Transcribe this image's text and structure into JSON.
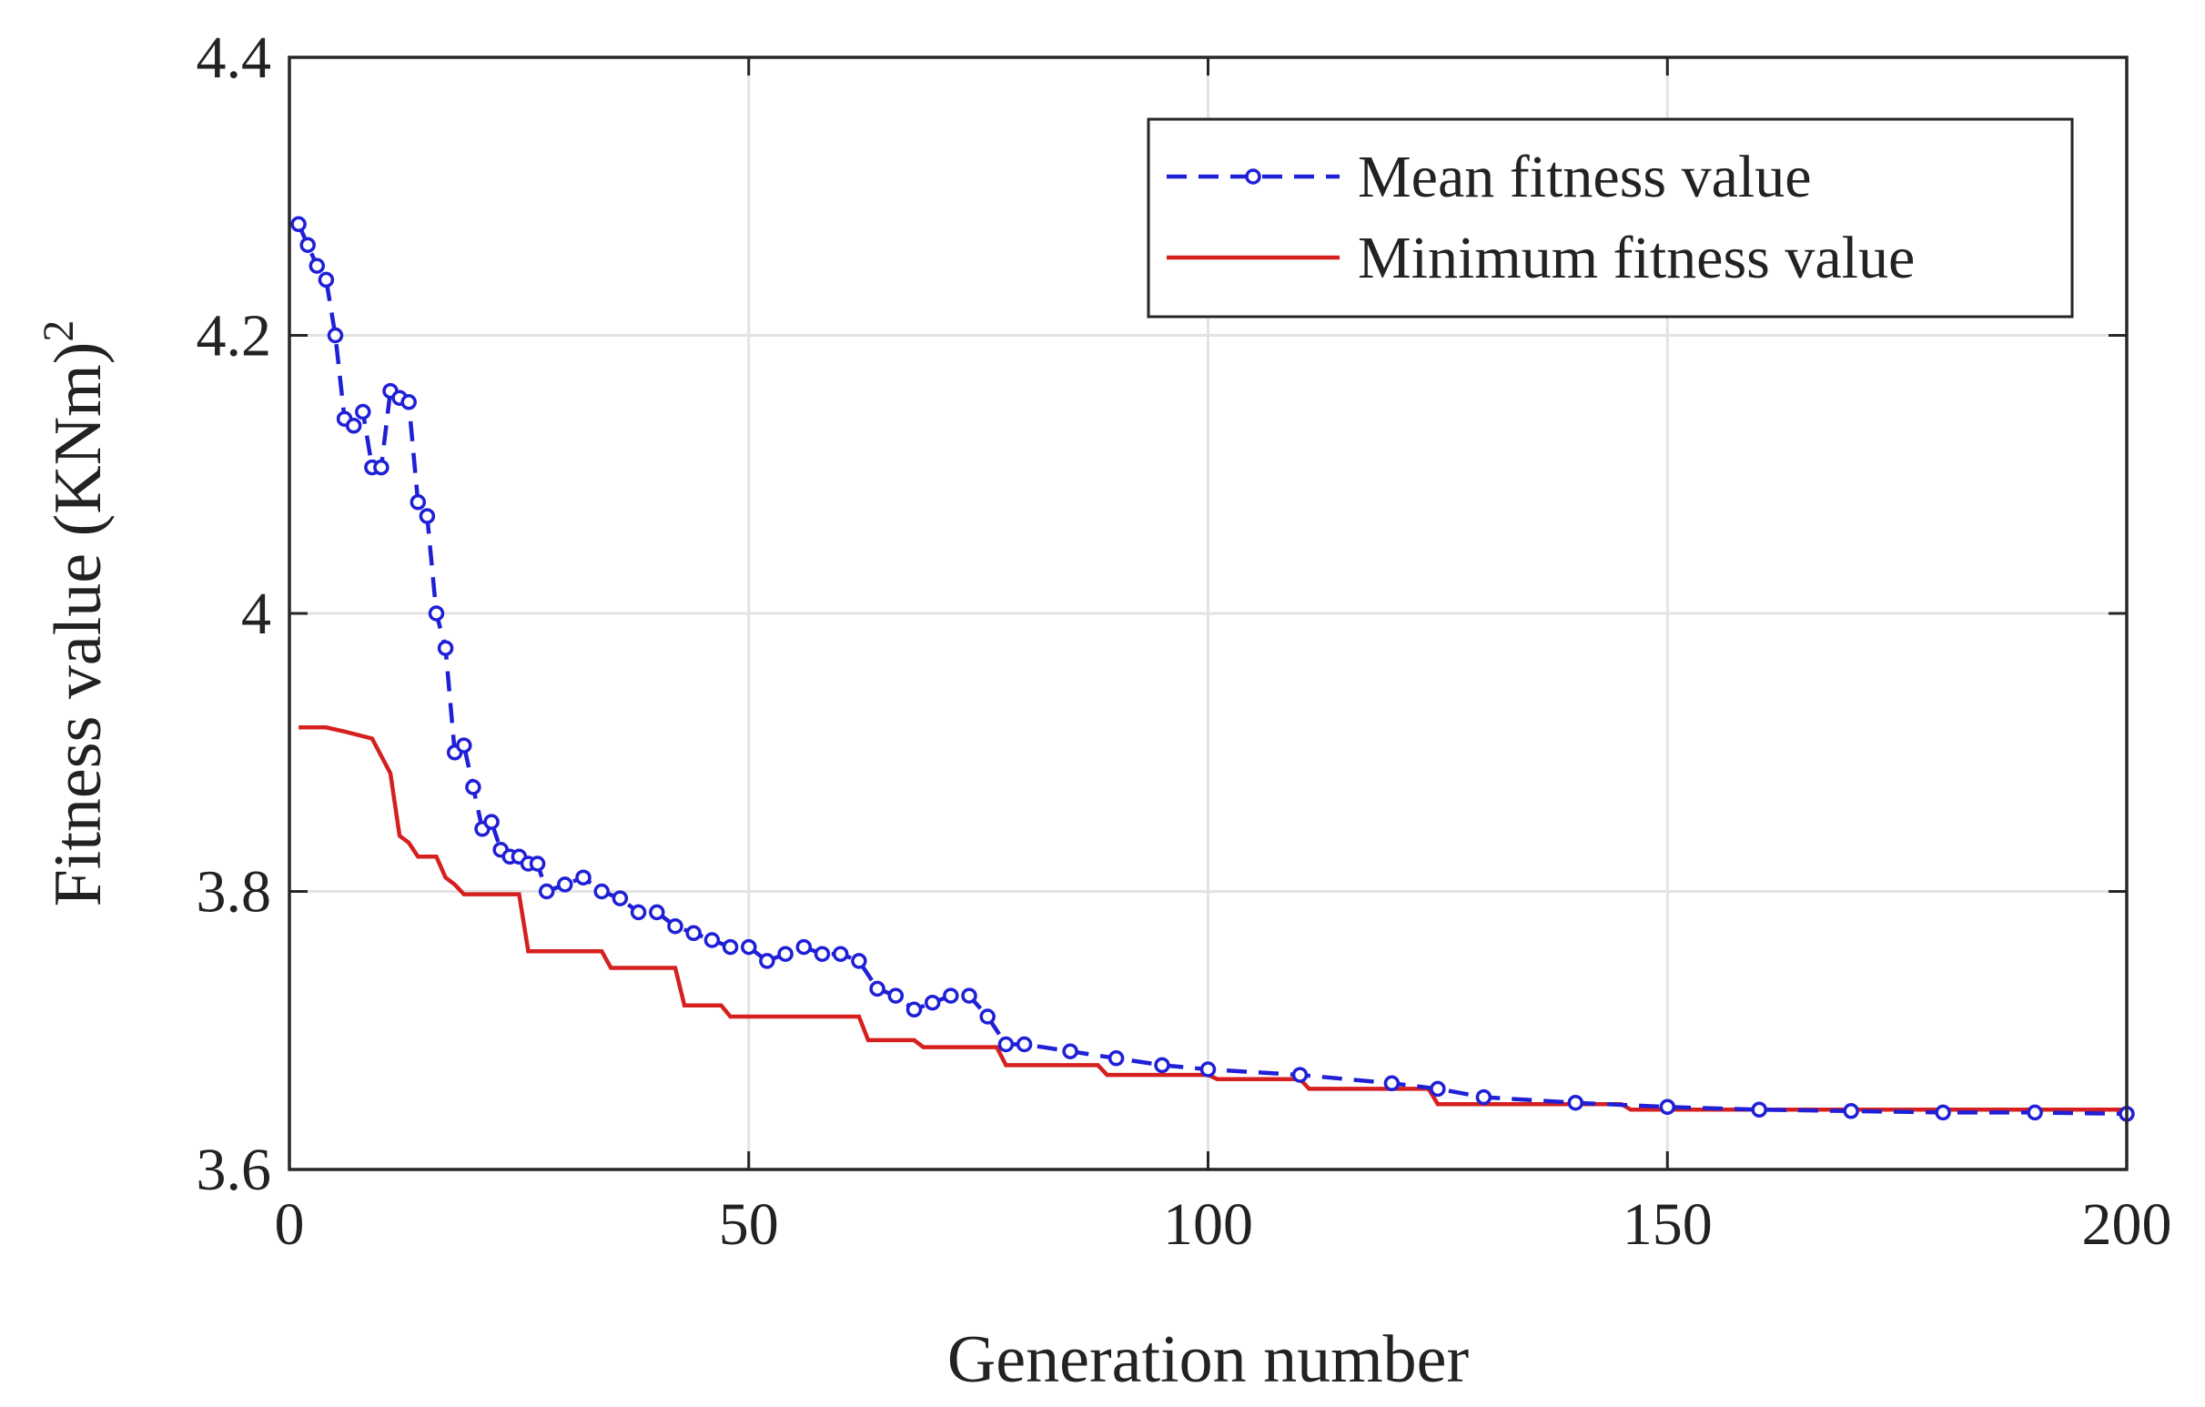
{
  "chart_data": {
    "type": "line",
    "title": "",
    "xlabel": "Generation number",
    "ylabel_text": "Fitness value (KNm)",
    "ylabel_superscript": "2",
    "xlim": [
      0,
      200
    ],
    "ylim": [
      3.6,
      4.4
    ],
    "xticks": [
      0,
      50,
      100,
      150,
      200
    ],
    "xtick_labels": [
      "0",
      "50",
      "100",
      "150",
      "200"
    ],
    "yticks": [
      3.6,
      3.8,
      4.0,
      4.2,
      4.4
    ],
    "ytick_labels": [
      "3.6",
      "3.8",
      "4",
      "4.2",
      "4.4"
    ],
    "grid": true,
    "legend_position": "top-right",
    "series": [
      {
        "name": "Mean fitness value",
        "color": "#1f1fd6",
        "style": "dashed-circle-markers",
        "x": [
          1,
          2,
          3,
          4,
          5,
          6,
          7,
          8,
          9,
          10,
          11,
          12,
          13,
          14,
          15,
          16,
          17,
          18,
          19,
          20,
          21,
          22,
          23,
          24,
          25,
          26,
          27,
          28,
          30,
          32,
          34,
          36,
          38,
          40,
          42,
          44,
          46,
          48,
          50,
          52,
          54,
          56,
          58,
          60,
          62,
          64,
          66,
          68,
          70,
          72,
          74,
          76,
          78,
          80,
          85,
          90,
          95,
          100,
          110,
          120,
          125,
          130,
          140,
          150,
          160,
          170,
          180,
          190,
          200
        ],
        "values": [
          4.28,
          4.265,
          4.25,
          4.24,
          4.2,
          4.14,
          4.135,
          4.145,
          4.105,
          4.105,
          4.16,
          4.155,
          4.152,
          4.08,
          4.07,
          4.0,
          3.975,
          3.9,
          3.905,
          3.875,
          3.845,
          3.85,
          3.83,
          3.825,
          3.825,
          3.82,
          3.82,
          3.8,
          3.805,
          3.81,
          3.8,
          3.795,
          3.785,
          3.785,
          3.775,
          3.77,
          3.765,
          3.76,
          3.76,
          3.75,
          3.755,
          3.76,
          3.755,
          3.755,
          3.75,
          3.73,
          3.725,
          3.715,
          3.72,
          3.725,
          3.725,
          3.71,
          3.69,
          3.69,
          3.685,
          3.68,
          3.675,
          3.672,
          3.668,
          3.662,
          3.658,
          3.652,
          3.648,
          3.645,
          3.643,
          3.642,
          3.641,
          3.641,
          3.64
        ]
      },
      {
        "name": "Minimum fitness value",
        "color": "#d61f1f",
        "style": "solid",
        "x": [
          1,
          4,
          6,
          9,
          11,
          12,
          13,
          14,
          16,
          17,
          18,
          19,
          25,
          26,
          34,
          35,
          42,
          43,
          47,
          48,
          62,
          63,
          68,
          69,
          77,
          78,
          88,
          89,
          100,
          101,
          110,
          111,
          124,
          125,
          145,
          146,
          200
        ],
        "values": [
          3.918,
          3.918,
          3.915,
          3.91,
          3.885,
          3.84,
          3.835,
          3.825,
          3.825,
          3.81,
          3.805,
          3.798,
          3.798,
          3.757,
          3.757,
          3.745,
          3.745,
          3.718,
          3.718,
          3.71,
          3.71,
          3.693,
          3.693,
          3.688,
          3.688,
          3.675,
          3.675,
          3.668,
          3.668,
          3.665,
          3.665,
          3.658,
          3.658,
          3.647,
          3.647,
          3.643,
          3.643
        ]
      }
    ]
  },
  "colors": {
    "mean_series": "#1f1fd6",
    "min_series": "#d61f1f",
    "axes": "#262626",
    "grid": "#e3e3e3"
  }
}
